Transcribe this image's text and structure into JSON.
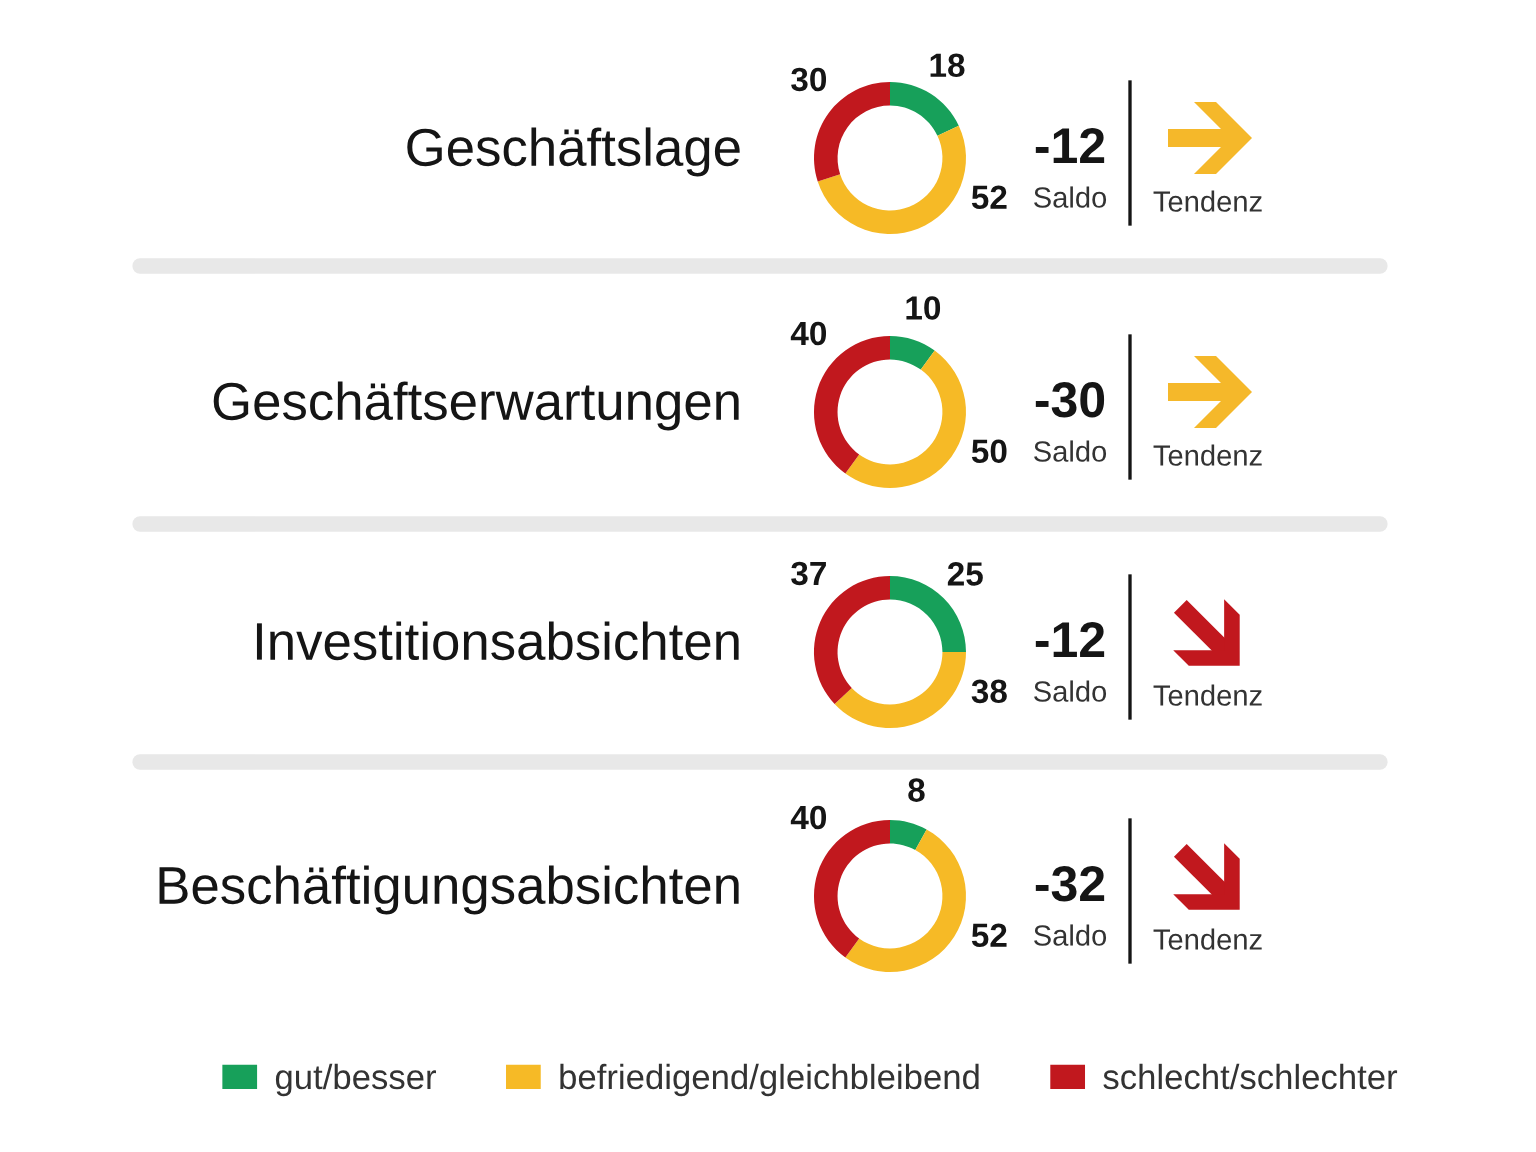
{
  "chart_data": [
    {
      "type": "donut",
      "title": "Geschäftslage",
      "categories": [
        "gut/besser",
        "befriedigend/gleichbleibend",
        "schlecht/schlechter"
      ],
      "values": [
        18,
        52,
        30
      ],
      "colors": [
        "#17a05a",
        "#f6ba26",
        "#c1181e"
      ],
      "data_labels": true,
      "annotations": [
        "-12",
        "Saldo",
        "Tendenz"
      ],
      "legend": "bottom"
    },
    {
      "type": "donut",
      "title": "Geschäftserwartungen",
      "values": [
        10,
        50,
        40
      ],
      "colors": [
        "#17a05a",
        "#f6ba26",
        "#c1181e"
      ],
      "data_labels": true,
      "annotations": [
        "-30",
        "Saldo",
        "Tendenz"
      ]
    },
    {
      "type": "donut",
      "title": "Investitionsabsichten",
      "values": [
        25,
        38,
        37
      ],
      "colors": [
        "#17a05a",
        "#f6ba26",
        "#c1181e"
      ],
      "data_labels": true,
      "annotations": [
        "-12",
        "Saldo",
        "Tendenz"
      ]
    },
    {
      "type": "donut",
      "title": "Beschäftigungsabsichten",
      "values": [
        8,
        52,
        40
      ],
      "colors": [
        "#17a05a",
        "#f6ba26",
        "#c1181e"
      ],
      "data_labels": true,
      "annotations": [
        "-32",
        "Saldo",
        "Tendenz"
      ]
    }
  ]
}
